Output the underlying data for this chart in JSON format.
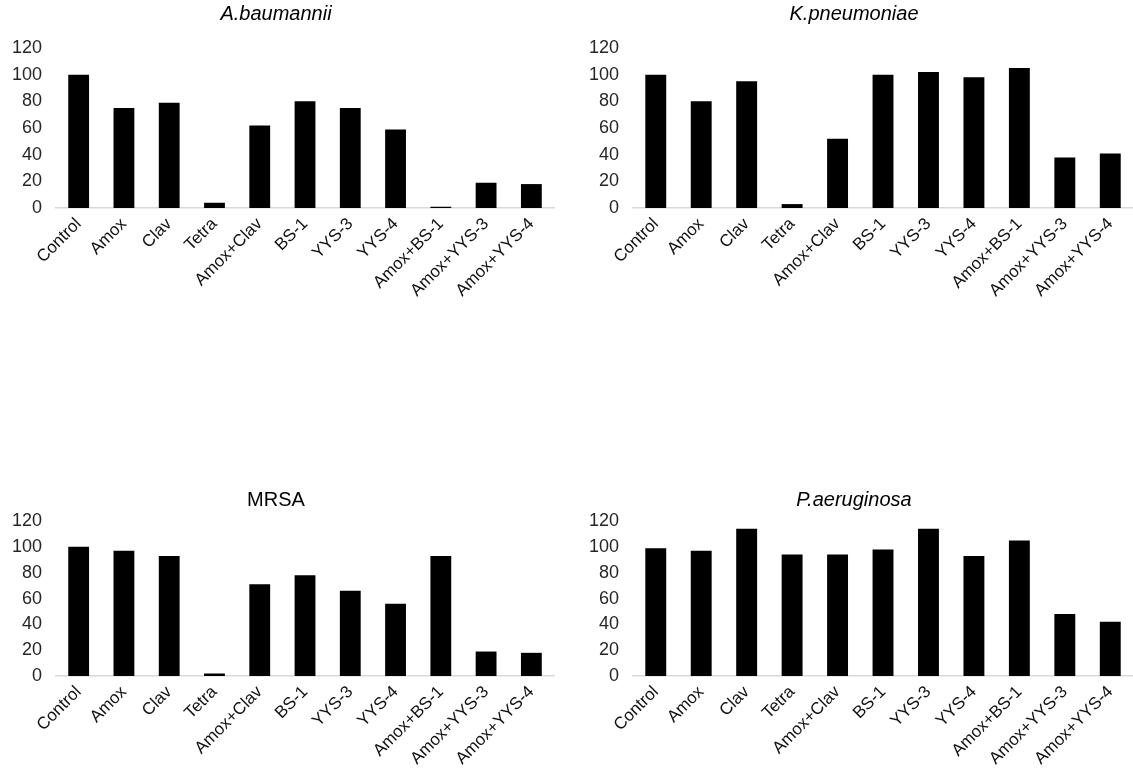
{
  "chart_data": [
    {
      "type": "bar",
      "title": "A.baumannii",
      "categories": [
        "Control",
        "Amox",
        "Clav",
        "Tetra",
        "Amox+Clav",
        "BS-1",
        "YYS-3",
        "YYS-4",
        "Amox+BS-1",
        "Amox+YYS-3",
        "Amox+YYS-4"
      ],
      "values": [
        100,
        75,
        79,
        4,
        62,
        80,
        75,
        59,
        1,
        19,
        18
      ],
      "color": "#000000",
      "ylim": [
        0,
        120
      ],
      "yticks": [
        0,
        20,
        40,
        60,
        80,
        100,
        120
      ],
      "grid": false
    },
    {
      "type": "bar",
      "title": "K.pneumoniae",
      "categories": [
        "Control",
        "Amox",
        "Clav",
        "Tetra",
        "Amox+Clav",
        "BS-1",
        "YYS-3",
        "YYS-4",
        "Amox+BS-1",
        "Amox+YYS-3",
        "Amox+YYS-4"
      ],
      "values": [
        100,
        80,
        95,
        3,
        52,
        100,
        102,
        98,
        105,
        38,
        41
      ],
      "color": "#000000",
      "ylim": [
        0,
        120
      ],
      "yticks": [
        0,
        20,
        40,
        60,
        80,
        100,
        120
      ],
      "grid": false
    },
    {
      "type": "bar",
      "title": "MRSA",
      "categories": [
        "Control",
        "Amox",
        "Clav",
        "Tetra",
        "Amox+Clav",
        "BS-1",
        "YYS-3",
        "YYS-4",
        "Amox+BS-1",
        "Amox+YYS-3",
        "Amox+YYS-4"
      ],
      "values": [
        100,
        97,
        93,
        2,
        71,
        78,
        66,
        56,
        93,
        19,
        18
      ],
      "color": "#000000",
      "ylim": [
        0,
        120
      ],
      "yticks": [
        0,
        20,
        40,
        60,
        80,
        100,
        120
      ],
      "grid": false
    },
    {
      "type": "bar",
      "title": "P.aeruginosa",
      "categories": [
        "Control",
        "Amox",
        "Clav",
        "Tetra",
        "Amox+Clav",
        "BS-1",
        "YYS-3",
        "YYS-4",
        "Amox+BS-1",
        "Amox+YYS-3",
        "Amox+YYS-4"
      ],
      "values": [
        99,
        97,
        114,
        94,
        94,
        98,
        114,
        93,
        105,
        48,
        42
      ],
      "color": "#000000",
      "ylim": [
        0,
        120
      ],
      "yticks": [
        0,
        20,
        40,
        60,
        80,
        100,
        120
      ],
      "grid": false
    }
  ]
}
